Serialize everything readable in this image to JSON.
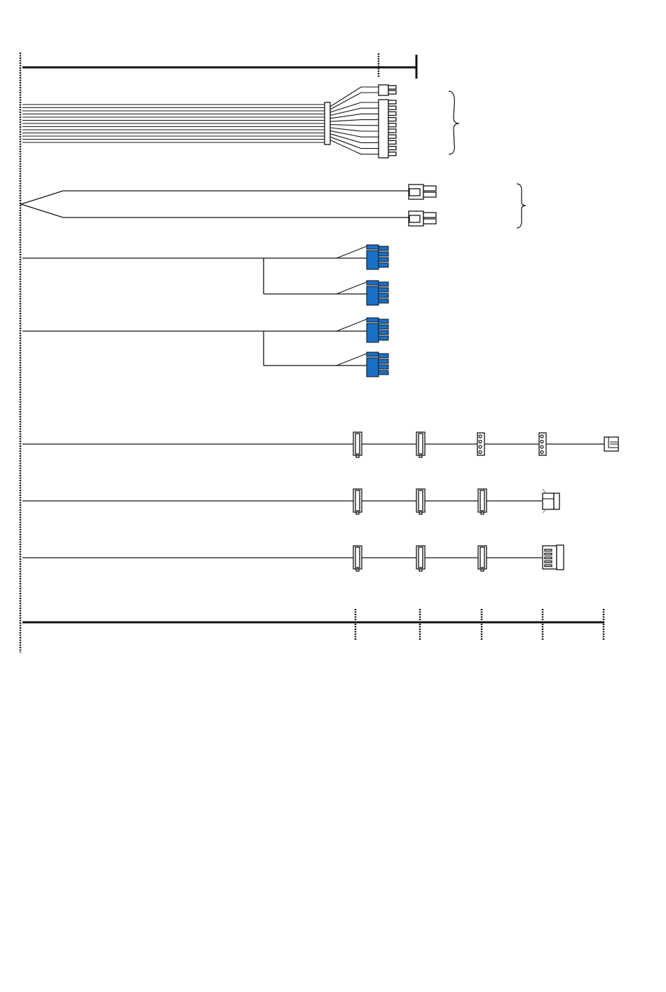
{
  "colors": {
    "line": "#111111",
    "pcie_connector": "#1a6fc4",
    "background": "#ffffff"
  },
  "cables": [
    {
      "name": "main-atx-cable",
      "connectors": [
        "4-pin-connector",
        "20-pin-connector"
      ]
    },
    {
      "name": "cpu-cable",
      "connectors": [
        "cpu-connector",
        "cpu-connector"
      ]
    },
    {
      "name": "pcie-cable-1",
      "connectors": [
        "pcie-connector",
        "pcie-connector"
      ]
    },
    {
      "name": "pcie-cable-2",
      "connectors": [
        "pcie-connector",
        "pcie-connector"
      ]
    },
    {
      "name": "peripheral-cable-1",
      "connectors": [
        "sata-connector",
        "sata-connector",
        "molex-connector",
        "molex-connector",
        "floppy-connector"
      ]
    },
    {
      "name": "peripheral-cable-2",
      "connectors": [
        "sata-connector",
        "sata-connector",
        "sata-connector",
        "molex-side-connector"
      ]
    },
    {
      "name": "peripheral-cable-3",
      "connectors": [
        "sata-connector",
        "sata-connector",
        "sata-connector",
        "molex-connector-large"
      ]
    }
  ]
}
